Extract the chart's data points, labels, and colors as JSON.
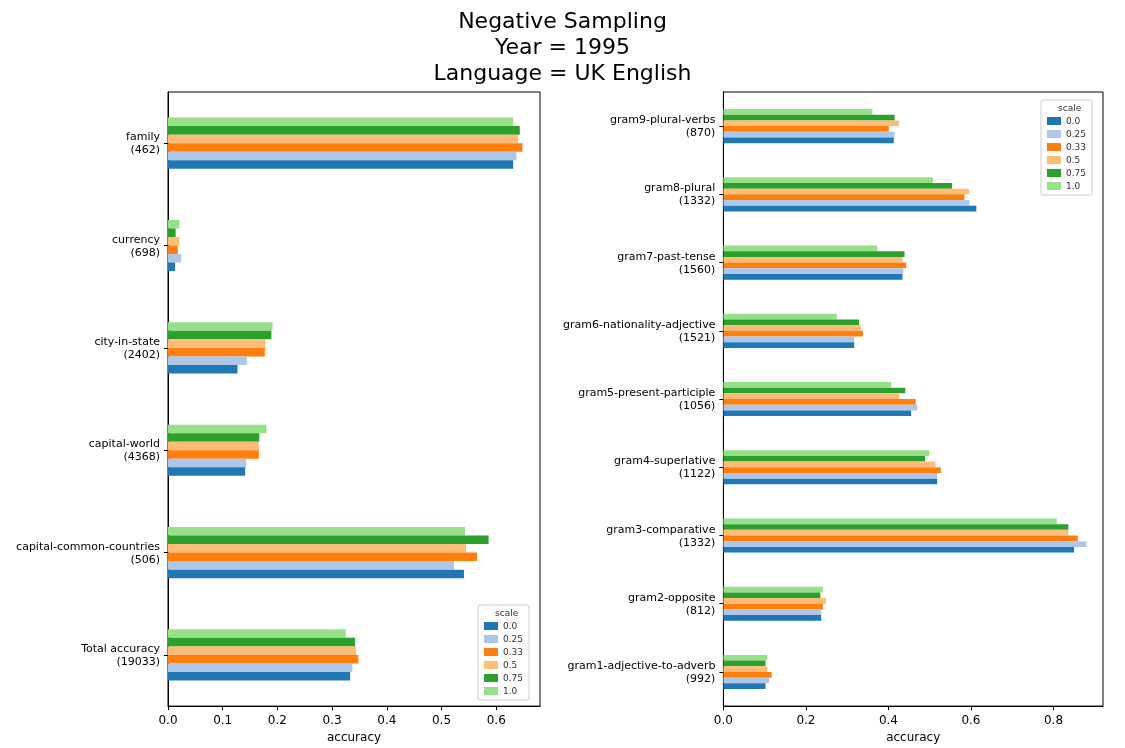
{
  "chart_data": [
    {
      "type": "bar",
      "title": "Negative Sampling\nYear = 1995\nLanguage = UK English",
      "orientation": "horizontal",
      "xlabel": "accuracy",
      "legend_title": "scale",
      "legend": "bottom right",
      "grid": false,
      "categories": [
        "family\n(462)",
        "currency\n(698)",
        "city-in-state\n(2402)",
        "capital-world\n(4368)",
        "capital-common-countries\n(506)",
        "Total accuracy\n(19033)"
      ],
      "xlim": [
        0,
        0.68
      ],
      "xticks": [
        {
          "value": 0,
          "label": "0.0"
        },
        0.1,
        0.2,
        0.3,
        0.4,
        0.5,
        0.6
      ],
      "series": [
        {
          "name": "0.0",
          "color": "#1f77b4",
          "values": [
            0.631,
            0.013,
            0.127,
            0.141,
            0.541,
            0.333
          ]
        },
        {
          "name": "0.25",
          "color": "#aec7e8",
          "values": [
            0.637,
            0.024,
            0.144,
            0.143,
            0.523,
            0.337
          ]
        },
        {
          "name": "0.33",
          "color": "#ff7f0e",
          "values": [
            0.648,
            0.018,
            0.177,
            0.166,
            0.565,
            0.348
          ]
        },
        {
          "name": "0.5",
          "color": "#ffbb78",
          "values": [
            0.64,
            0.021,
            0.178,
            0.166,
            0.545,
            0.344
          ]
        },
        {
          "name": "0.75",
          "color": "#2ca02c",
          "values": [
            0.643,
            0.014,
            0.189,
            0.167,
            0.586,
            0.342
          ]
        },
        {
          "name": "1.0",
          "color": "#98df8a",
          "values": [
            0.631,
            0.021,
            0.191,
            0.18,
            0.543,
            0.325
          ]
        }
      ]
    },
    {
      "type": "bar",
      "orientation": "horizontal",
      "xlabel": "accuracy",
      "legend_title": "scale",
      "legend": "top right",
      "grid": false,
      "categories": [
        "gram9-plural-verbs\n(870)",
        "gram8-plural\n(1332)",
        "gram7-past-tense\n(1560)",
        "gram6-nationality-adjective\n(1521)",
        "gram5-present-participle\n(1056)",
        "gram4-superlative\n(1122)",
        "gram3-comparative\n(1332)",
        "gram2-opposite\n(812)",
        "gram1-adjective-to-adverb\n(992)"
      ],
      "xlim": [
        0,
        0.92
      ],
      "xticks": [
        {
          "value": 0,
          "label": "0.0"
        },
        0.2,
        0.4,
        0.6,
        0.8
      ],
      "series": [
        {
          "name": "0.0",
          "color": "#1f77b4",
          "values": [
            0.413,
            0.613,
            0.434,
            0.317,
            0.455,
            0.518,
            0.85,
            0.237,
            0.102
          ]
        },
        {
          "name": "0.25",
          "color": "#aec7e8",
          "values": [
            0.415,
            0.596,
            0.436,
            0.317,
            0.47,
            0.518,
            0.88,
            0.237,
            0.111
          ]
        },
        {
          "name": "0.33",
          "color": "#ff7f0e",
          "values": [
            0.401,
            0.584,
            0.443,
            0.338,
            0.466,
            0.527,
            0.859,
            0.241,
            0.117
          ]
        },
        {
          "name": "0.5",
          "color": "#ffbb78",
          "values": [
            0.426,
            0.596,
            0.434,
            0.333,
            0.426,
            0.514,
            0.836,
            0.249,
            0.106
          ]
        },
        {
          "name": "0.75",
          "color": "#2ca02c",
          "values": [
            0.415,
            0.554,
            0.439,
            0.329,
            0.441,
            0.489,
            0.836,
            0.235,
            0.102
          ]
        },
        {
          "name": "1.0",
          "color": "#98df8a",
          "values": [
            0.361,
            0.508,
            0.373,
            0.275,
            0.407,
            0.499,
            0.808,
            0.241,
            0.106
          ]
        }
      ]
    }
  ]
}
